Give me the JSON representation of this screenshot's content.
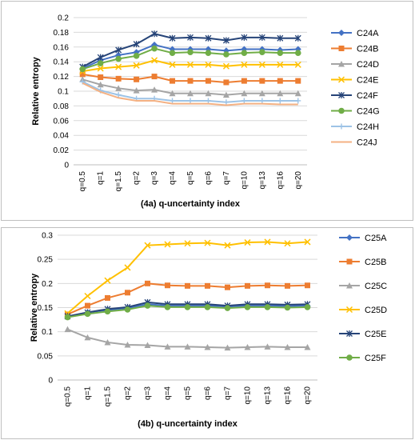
{
  "chart_data": [
    {
      "type": "line",
      "title": "",
      "xlabel": "(4a) q-uncertainty index",
      "ylabel": "Relative entropy",
      "categories": [
        "q=0.5",
        "q=1",
        "q=1.5",
        "q=2",
        "q=3",
        "q=4",
        "q=5",
        "q=6",
        "q=7",
        "q=10",
        "q=13",
        "q=16",
        "q=20"
      ],
      "ylim": [
        0,
        0.2
      ],
      "yticks": [
        "0",
        "0.02",
        "0.04",
        "0.06",
        "0.08",
        "0.1",
        "0.12",
        "0.14",
        "0.16",
        "0.18",
        "0.2"
      ],
      "ytick_values": [
        0,
        0.02,
        0.04,
        0.06,
        0.08,
        0.1,
        0.12,
        0.14,
        0.16,
        0.18,
        0.2
      ],
      "grid": "horizontal",
      "legend": "right",
      "series": [
        {
          "name": "C24A",
          "color": "#4472c4",
          "marker": "diamond",
          "values": [
            0.131,
            0.142,
            0.149,
            0.153,
            0.163,
            0.157,
            0.157,
            0.157,
            0.155,
            0.157,
            0.157,
            0.156,
            0.157
          ]
        },
        {
          "name": "C24B",
          "color": "#ed7d31",
          "marker": "square",
          "values": [
            0.123,
            0.119,
            0.117,
            0.116,
            0.12,
            0.114,
            0.114,
            0.114,
            0.112,
            0.114,
            0.114,
            0.114,
            0.114
          ]
        },
        {
          "name": "C24D",
          "color": "#a5a5a5",
          "marker": "triangle",
          "values": [
            0.116,
            0.109,
            0.104,
            0.101,
            0.102,
            0.097,
            0.097,
            0.097,
            0.095,
            0.097,
            0.097,
            0.097,
            0.097
          ]
        },
        {
          "name": "C24E",
          "color": "#ffc000",
          "marker": "x",
          "values": [
            0.127,
            0.131,
            0.133,
            0.135,
            0.142,
            0.136,
            0.136,
            0.136,
            0.134,
            0.136,
            0.136,
            0.136,
            0.136
          ]
        },
        {
          "name": "C24F",
          "color": "#264478",
          "marker": "star",
          "values": [
            0.133,
            0.146,
            0.156,
            0.164,
            0.178,
            0.172,
            0.173,
            0.172,
            0.169,
            0.173,
            0.173,
            0.172,
            0.172
          ]
        },
        {
          "name": "C24G",
          "color": "#70ad47",
          "marker": "circle",
          "values": [
            0.13,
            0.138,
            0.144,
            0.148,
            0.158,
            0.152,
            0.153,
            0.152,
            0.15,
            0.152,
            0.153,
            0.152,
            0.152
          ]
        },
        {
          "name": "C24H",
          "color": "#9dc3e6",
          "marker": "plus",
          "values": [
            0.113,
            0.101,
            0.095,
            0.09,
            0.09,
            0.087,
            0.087,
            0.087,
            0.085,
            0.087,
            0.087,
            0.087,
            0.087
          ]
        },
        {
          "name": "C24J",
          "color": "#f4b183",
          "marker": "none",
          "values": [
            0.111,
            0.099,
            0.091,
            0.087,
            0.087,
            0.083,
            0.083,
            0.083,
            0.081,
            0.083,
            0.083,
            0.082,
            0.082
          ]
        }
      ]
    },
    {
      "type": "line",
      "title": "",
      "xlabel": "(4b) q-uncertainty index",
      "ylabel": "Relative entropy",
      "categories": [
        "q=0.5",
        "q=1",
        "q=1.5",
        "q=2",
        "q=3",
        "q=4",
        "q=5",
        "q=6",
        "q=7",
        "q=10",
        "q=13",
        "q=16",
        "q=20"
      ],
      "ylim": [
        0,
        0.3
      ],
      "yticks": [
        "0",
        "0.05",
        "0.1",
        "0.15",
        "0.2",
        "0.25",
        "0.3"
      ],
      "ytick_values": [
        0,
        0.05,
        0.1,
        0.15,
        0.2,
        0.25,
        0.3
      ],
      "grid": "horizontal",
      "legend": "right",
      "series": [
        {
          "name": "C25A",
          "color": "#4472c4",
          "marker": "diamond",
          "values": [
            0.131,
            0.14,
            0.145,
            0.149,
            0.157,
            0.154,
            0.154,
            0.154,
            0.152,
            0.154,
            0.154,
            0.153,
            0.154
          ]
        },
        {
          "name": "C25B",
          "color": "#ed7d31",
          "marker": "square",
          "values": [
            0.136,
            0.154,
            0.17,
            0.181,
            0.2,
            0.196,
            0.195,
            0.195,
            0.192,
            0.195,
            0.196,
            0.195,
            0.196
          ]
        },
        {
          "name": "C25C",
          "color": "#a5a5a5",
          "marker": "triangle",
          "values": [
            0.105,
            0.088,
            0.078,
            0.073,
            0.072,
            0.069,
            0.069,
            0.068,
            0.067,
            0.068,
            0.069,
            0.068,
            0.068
          ]
        },
        {
          "name": "C25D",
          "color": "#ffc000",
          "marker": "x",
          "values": [
            0.138,
            0.174,
            0.206,
            0.233,
            0.279,
            0.281,
            0.283,
            0.284,
            0.279,
            0.285,
            0.286,
            0.283,
            0.286
          ]
        },
        {
          "name": "C25E",
          "color": "#264478",
          "marker": "star",
          "values": [
            0.132,
            0.14,
            0.147,
            0.151,
            0.161,
            0.157,
            0.157,
            0.157,
            0.154,
            0.157,
            0.157,
            0.156,
            0.157
          ]
        },
        {
          "name": "C25F",
          "color": "#70ad47",
          "marker": "circle",
          "values": [
            0.13,
            0.137,
            0.142,
            0.146,
            0.154,
            0.151,
            0.151,
            0.151,
            0.149,
            0.151,
            0.151,
            0.15,
            0.151
          ]
        }
      ]
    }
  ]
}
